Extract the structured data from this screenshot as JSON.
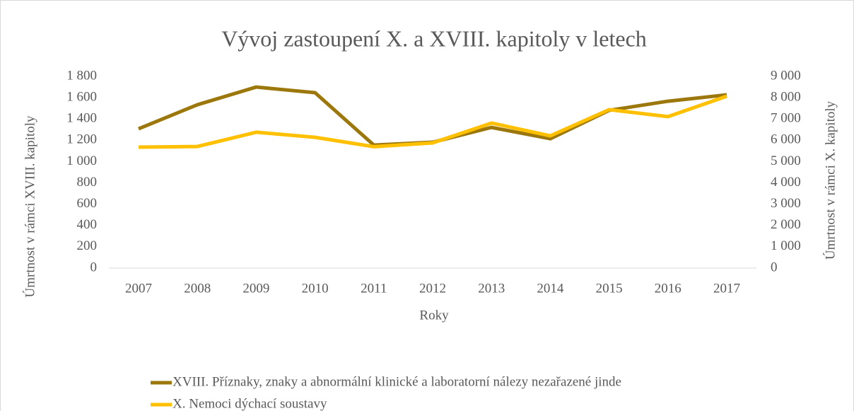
{
  "chart_data": {
    "type": "line",
    "title": "Vývoj zastoupení X. a XVIII. kapitoly v letech",
    "xlabel": "Roky",
    "ylabel": "Úmrtnost v rámci XVIII. kapitoly",
    "y2label": "Úmrtnost v rámci X. kapitoly",
    "categories": [
      "2007",
      "2008",
      "2009",
      "2010",
      "2011",
      "2012",
      "2013",
      "2014",
      "2015",
      "2016",
      "2017"
    ],
    "series": [
      {
        "name": "XVIII. Příznaky, znaky a abnormální klinické a laboratorní nálezy nezařazené jinde",
        "color": "#9c780c",
        "axis": "y",
        "values": [
          1308,
          1534,
          1700,
          1647,
          1155,
          1182,
          1321,
          1215,
          1481,
          1567,
          1627
        ]
      },
      {
        "name": "X. Nemoci dýchací soustavy",
        "color": "#ffc000",
        "axis": "y2",
        "values": [
          5680,
          5710,
          6380,
          6140,
          5700,
          5880,
          6810,
          6210,
          7440,
          7110,
          8070
        ]
      }
    ],
    "ylim": [
      0,
      1800
    ],
    "yticks": [
      0,
      200,
      400,
      600,
      800,
      {
        "value": 1000,
        "label": "1 000"
      },
      {
        "value": 1200,
        "label": "1 200"
      },
      {
        "value": 1400,
        "label": "1 400"
      },
      {
        "value": 1600,
        "label": "1 600"
      },
      {
        "value": 1800,
        "label": "1 800"
      }
    ],
    "y2lim": [
      0,
      9000
    ],
    "y2ticks": [
      0,
      {
        "value": 1000,
        "label": "1 000"
      },
      {
        "value": 2000,
        "label": "2 000"
      },
      {
        "value": 3000,
        "label": "3 000"
      },
      {
        "value": 4000,
        "label": "4 000"
      },
      {
        "value": 5000,
        "label": "5 000"
      },
      {
        "value": 6000,
        "label": "6 000"
      },
      {
        "value": 7000,
        "label": "7 000"
      },
      {
        "value": 8000,
        "label": "8 000"
      },
      {
        "value": 9000,
        "label": "9 000"
      }
    ],
    "grid": false,
    "legend": "bottom"
  }
}
